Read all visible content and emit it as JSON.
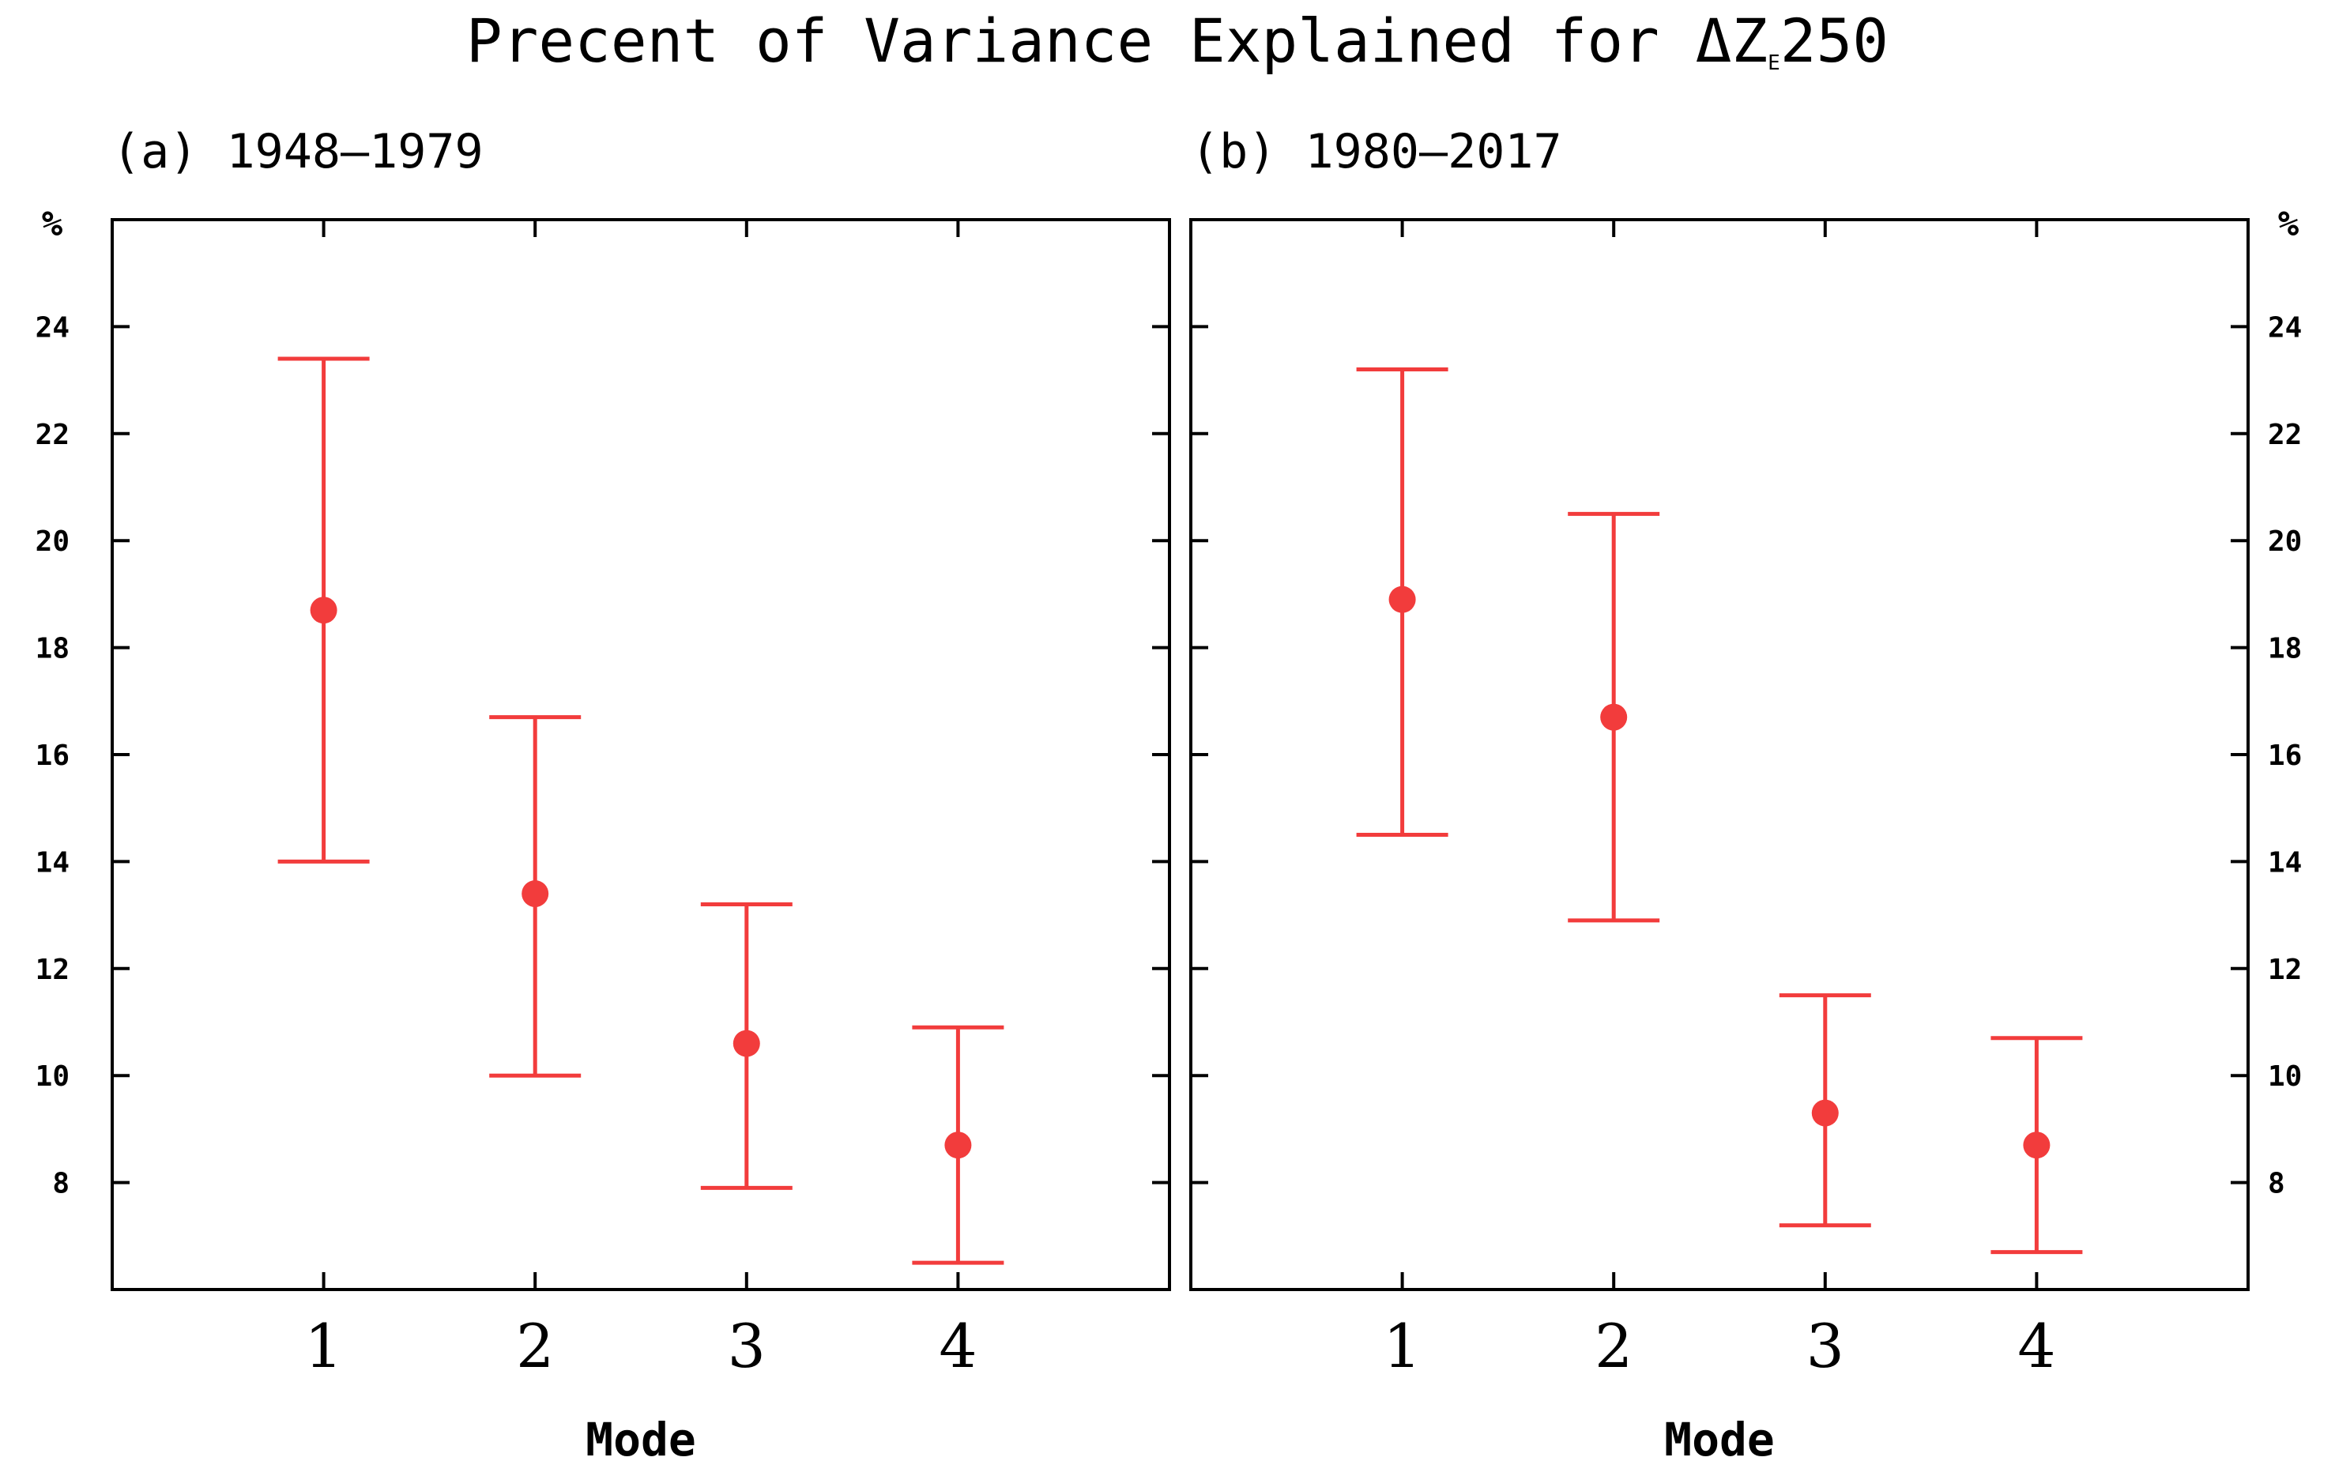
{
  "title": {
    "prefix": "Precent of Variance Explained for ",
    "delta": "Δ",
    "variable": "Z",
    "subscript": "E",
    "level": "250"
  },
  "chart_data": [
    {
      "type": "errorbar",
      "panel_label": "(a) 1948–1979",
      "xlabel": "Mode",
      "ylabel": "%",
      "categories": [
        "1",
        "2",
        "3",
        "4"
      ],
      "y_ticks": [
        "8",
        "10",
        "12",
        "14",
        "16",
        "18",
        "20",
        "22",
        "24"
      ],
      "xlim": [
        0,
        5
      ],
      "ylim": [
        6,
        26
      ],
      "color": "#f23c3c",
      "series": [
        {
          "mode": 1,
          "value": 18.7,
          "lower": 14.0,
          "upper": 23.4
        },
        {
          "mode": 2,
          "value": 13.4,
          "lower": 10.0,
          "upper": 16.7
        },
        {
          "mode": 3,
          "value": 10.6,
          "lower": 7.9,
          "upper": 13.2
        },
        {
          "mode": 4,
          "value": 8.7,
          "lower": 6.5,
          "upper": 10.9
        }
      ]
    },
    {
      "type": "errorbar",
      "panel_label": "(b) 1980–2017",
      "xlabel": "Mode",
      "ylabel": "%",
      "categories": [
        "1",
        "2",
        "3",
        "4"
      ],
      "y_ticks": [
        "8",
        "10",
        "12",
        "14",
        "16",
        "18",
        "20",
        "22",
        "24"
      ],
      "xlim": [
        0,
        5
      ],
      "ylim": [
        6,
        26
      ],
      "color": "#f23c3c",
      "series": [
        {
          "mode": 1,
          "value": 18.9,
          "lower": 14.5,
          "upper": 23.2
        },
        {
          "mode": 2,
          "value": 16.7,
          "lower": 12.9,
          "upper": 20.5
        },
        {
          "mode": 3,
          "value": 9.3,
          "lower": 7.2,
          "upper": 11.5
        },
        {
          "mode": 4,
          "value": 8.7,
          "lower": 6.7,
          "upper": 10.7
        }
      ]
    }
  ]
}
